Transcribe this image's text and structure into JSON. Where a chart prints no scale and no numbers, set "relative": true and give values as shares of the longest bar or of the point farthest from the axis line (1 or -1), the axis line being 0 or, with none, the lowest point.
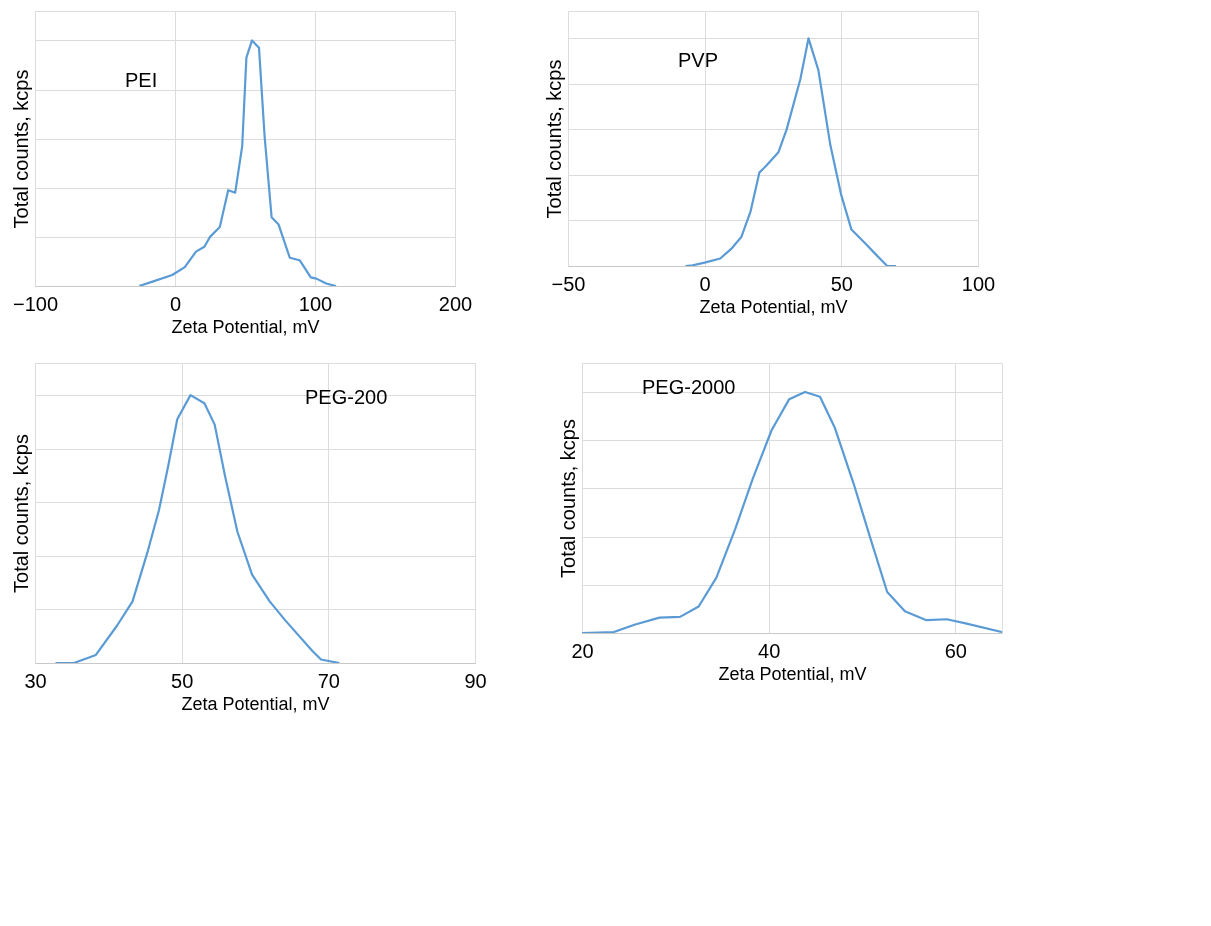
{
  "chart_data": [
    {
      "type": "line",
      "xlabel": "Zeta Potential, mV",
      "ylabel": "Total counts, kcps",
      "relative": true,
      "grid": true,
      "tick_labels": "x",
      "xlim": [
        -100,
        200
      ],
      "xticks": [
        -100,
        0,
        100,
        200
      ],
      "x": [
        -25.5,
        -15,
        -2,
        7,
        15,
        21,
        25,
        32,
        38,
        43,
        48,
        51,
        55,
        60,
        64,
        69,
        74,
        82,
        89,
        97,
        101,
        108,
        115
      ],
      "series": [
        {
          "name": "PEI",
          "color": "#5b9bd5",
          "values": [
            0,
            0.02,
            0.045,
            0.077,
            0.14,
            0.16,
            0.2,
            0.24,
            0.39,
            0.38,
            0.57,
            0.93,
            1.0,
            0.97,
            0.61,
            0.28,
            0.25,
            0.115,
            0.105,
            0.035,
            0.03,
            0.01,
            0
          ]
        }
      ]
    },
    {
      "type": "line",
      "xlabel": "Zeta Potential, mV",
      "ylabel": "Total counts, kcps",
      "relative": true,
      "grid": true,
      "tick_labels": "x",
      "xlim": [
        -50,
        100
      ],
      "xticks": [
        -50,
        0,
        50,
        100
      ],
      "x": [
        -7,
        -4.4,
        0,
        5.7,
        9.7,
        13.4,
        16.8,
        20,
        22.5,
        27,
        30,
        35,
        38,
        41.6,
        46,
        50,
        53.7,
        58.7,
        62.7,
        66.8,
        70
      ],
      "series": [
        {
          "name": "PVP",
          "color": "#5b9bd5",
          "values": [
            0,
            0.003,
            0.015,
            0.033,
            0.075,
            0.127,
            0.24,
            0.41,
            0.44,
            0.5,
            0.6,
            0.82,
            1.0,
            0.86,
            0.53,
            0.31,
            0.16,
            0.1,
            0.05,
            0,
            0
          ]
        }
      ]
    },
    {
      "type": "line",
      "xlabel": "Zeta Potential, mV",
      "ylabel": "Total counts, kcps",
      "relative": true,
      "grid": true,
      "tick_labels": "x",
      "xlim": [
        30,
        90
      ],
      "xticks": [
        30,
        50,
        70,
        90
      ],
      "x": [
        32.8,
        35.3,
        38.3,
        41.2,
        43.3,
        45.3,
        46.9,
        48.2,
        49.4,
        51.2,
        53.1,
        54.5,
        55.9,
        57.6,
        59.6,
        62,
        64.1,
        67.8,
        69,
        71.5
      ],
      "series": [
        {
          "name": "PEG-200",
          "color": "#5b9bd5",
          "values": [
            0,
            0,
            0.03,
            0.14,
            0.23,
            0.41,
            0.57,
            0.74,
            0.91,
            1.0,
            0.97,
            0.89,
            0.7,
            0.49,
            0.33,
            0.23,
            0.16,
            0.046,
            0.013,
            0
          ]
        }
      ]
    },
    {
      "type": "line",
      "xlabel": "Zeta Potential, mV",
      "ylabel": "Total counts, kcps",
      "relative": true,
      "grid": true,
      "tick_labels": "x",
      "xlim": [
        20,
        65
      ],
      "xticks": [
        20,
        40,
        60
      ],
      "x": [
        20,
        23.4,
        25.7,
        28.3,
        30.5,
        32.5,
        34.4,
        36.4,
        38.3,
        40.3,
        42.2,
        43.9,
        45.5,
        47.1,
        49.1,
        51,
        52.7,
        54.6,
        56.9,
        59.1,
        61.1,
        65
      ],
      "series": [
        {
          "name": "PEG-2000",
          "color": "#5b9bd5",
          "values": [
            0,
            0.004,
            0.035,
            0.064,
            0.067,
            0.11,
            0.23,
            0.43,
            0.64,
            0.84,
            0.97,
            1.0,
            0.98,
            0.85,
            0.62,
            0.38,
            0.17,
            0.09,
            0.053,
            0.057,
            0.04,
            0.004
          ]
        }
      ]
    }
  ]
}
